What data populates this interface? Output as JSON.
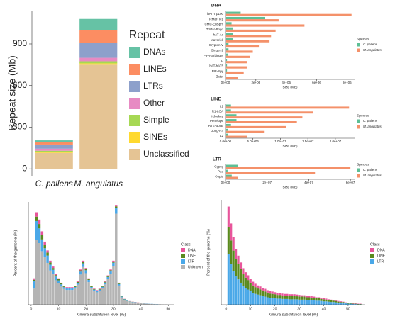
{
  "chart_data": [
    {
      "type": "stacked_bar",
      "ylabel": "Repeat size (Mb)",
      "legend_title": "Repeat",
      "categories": [
        "C. pallens",
        "M. angulatus"
      ],
      "series": [
        {
          "name": "DNAs",
          "color": "#66c2a5",
          "values": [
            15,
            80
          ]
        },
        {
          "name": "LINEs",
          "color": "#fc8d62",
          "values": [
            15,
            90
          ]
        },
        {
          "name": "LTRs",
          "color": "#8da0cb",
          "values": [
            30,
            110
          ]
        },
        {
          "name": "Other",
          "color": "#e78ac3",
          "values": [
            15,
            25
          ]
        },
        {
          "name": "Simple",
          "color": "#a6d854",
          "values": [
            10,
            15
          ]
        },
        {
          "name": "SINEs",
          "color": "#ffd92f",
          "values": [
            5,
            10
          ]
        },
        {
          "name": "Unclassified",
          "color": "#e5c494",
          "values": [
            115,
            750
          ]
        }
      ],
      "ylim": [
        -50,
        1140
      ],
      "yticks": [
        0,
        300,
        600,
        900
      ]
    },
    {
      "type": "grouped_barh",
      "title": "DNA",
      "xlabel": "Size (Mb)",
      "legend_title": "Species",
      "categories": [
        "hAT-Tip100",
        "TcMar-Tc1",
        "CMC-EnSpm",
        "TcMar-Pogo",
        "hAT-Ac",
        "Maverick",
        "Crypton-V",
        "Ginger-2",
        "PIF-Harbinger",
        "P",
        "hAT-hAT5",
        "PIF-Spy",
        "Zator"
      ],
      "series": [
        {
          "name": "C. pallens",
          "color": "#5dbf95",
          "values": [
            1000000,
            2600000,
            400000,
            500000,
            500000,
            500000,
            200000,
            200000,
            150000,
            100000,
            100000,
            100000,
            50000
          ]
        },
        {
          "name": "M. angulatus",
          "color": "#f4916a",
          "values": [
            8300000,
            3500000,
            5200000,
            3300000,
            3000000,
            2900000,
            2200000,
            1800000,
            1600000,
            1400000,
            1400000,
            1200000,
            800000
          ]
        }
      ],
      "xlim": [
        0,
        8500000
      ],
      "xticks": [
        {
          "value": 0,
          "label": "0e+00"
        },
        {
          "value": 2000000,
          "label": "2e+06"
        },
        {
          "value": 4000000,
          "label": "4e+06"
        },
        {
          "value": 6000000,
          "label": "6e+06"
        },
        {
          "value": 8000000,
          "label": "8e+06"
        }
      ]
    },
    {
      "type": "grouped_barh",
      "title": "LINE",
      "xlabel": "Size (Mb)",
      "legend_title": "Species",
      "categories": [
        "L1",
        "R1-LOA",
        "I-Jockey",
        "Penelope",
        "RTE-BovB",
        "Dong-R4",
        "L2"
      ],
      "series": [
        {
          "name": "C. pallens",
          "color": "#5dbf95",
          "values": [
            1000000,
            1000000,
            2000000,
            2000000,
            1000000,
            500000,
            500000
          ]
        },
        {
          "name": "M. angulatus",
          "color": "#f4916a",
          "values": [
            22500000,
            16000000,
            14000000,
            13000000,
            11000000,
            7000000,
            4000000
          ]
        }
      ],
      "xlim": [
        0,
        23500000
      ],
      "xticks": [
        {
          "value": 0,
          "label": "0.0e+00"
        },
        {
          "value": 5000000,
          "label": "5.0e+06"
        },
        {
          "value": 10000000,
          "label": "1.0e+07"
        },
        {
          "value": 15000000,
          "label": "1.5e+07"
        },
        {
          "value": 20000000,
          "label": "2.0e+07"
        }
      ]
    },
    {
      "type": "grouped_barh",
      "title": "LTR",
      "xlabel": "Size (Mb)",
      "legend_title": "Species",
      "categories": [
        "Gypsy",
        "Pao",
        "Copia"
      ],
      "series": [
        {
          "name": "C. pallens",
          "color": "#5dbf95",
          "values": [
            6000000,
            1000000,
            3000000
          ]
        },
        {
          "name": "M. angulatus",
          "color": "#f4916a",
          "values": [
            60000000,
            43000000,
            6000000
          ]
        }
      ],
      "xlim": [
        0,
        62000000
      ],
      "xticks": [
        {
          "value": 0,
          "label": "0e+00"
        },
        {
          "value": 20000000,
          "label": "2e+07"
        },
        {
          "value": 40000000,
          "label": "4e+07"
        },
        {
          "value": 60000000,
          "label": "6e+07"
        }
      ]
    },
    {
      "type": "stacked_bar",
      "xlabel": "Kimura substitution level (%)",
      "ylabel": "Percent of the genome (%)",
      "legend_title": "Class",
      "x": [
        1,
        2,
        3,
        4,
        5,
        6,
        7,
        8,
        9,
        10,
        11,
        12,
        13,
        14,
        15,
        16,
        17,
        18,
        19,
        20,
        21,
        22,
        23,
        24,
        25,
        26,
        27,
        28,
        29,
        30,
        31,
        32,
        33,
        34,
        35,
        36,
        37,
        38,
        39,
        40,
        41,
        42,
        43,
        44,
        45,
        46,
        47,
        48,
        49,
        50
      ],
      "series": [
        {
          "name": "DNA",
          "color": "#e8559b",
          "values": [
            0.1,
            0.3,
            0.3,
            0.25,
            0.2,
            0.15,
            0.12,
            0.1,
            0.08,
            0.06,
            0.05,
            0.05,
            0.04,
            0.04,
            0.04,
            0.04,
            0.05,
            0.06,
            0.08,
            0.07,
            0.05,
            0.04,
            0.03,
            0.03,
            0.03,
            0.03,
            0.04,
            0.05,
            0.05,
            0.06,
            0.1,
            0.04,
            0.02,
            0.01,
            0.01,
            0.01,
            0.01,
            0.01,
            0.01,
            0,
            0,
            0,
            0,
            0,
            0,
            0,
            0,
            0,
            0,
            0
          ]
        },
        {
          "name": "LINE",
          "color": "#5a8a1e",
          "values": [
            0.1,
            0.3,
            0.3,
            0.3,
            0.25,
            0.2,
            0.15,
            0.12,
            0.1,
            0.08,
            0.06,
            0.05,
            0.05,
            0.05,
            0.05,
            0.05,
            0.06,
            0.08,
            0.1,
            0.08,
            0.06,
            0.05,
            0.04,
            0.04,
            0.04,
            0.05,
            0.05,
            0.06,
            0.07,
            0.08,
            0.1,
            0.05,
            0.02,
            0.02,
            0.01,
            0.01,
            0.01,
            0.01,
            0.01,
            0.01,
            0,
            0,
            0,
            0,
            0,
            0,
            0,
            0,
            0,
            0
          ]
        },
        {
          "name": "LTR",
          "color": "#4aa8e8",
          "values": [
            0.5,
            1.3,
            1.0,
            0.8,
            0.6,
            0.5,
            0.4,
            0.3,
            0.25,
            0.2,
            0.15,
            0.12,
            0.1,
            0.1,
            0.1,
            0.1,
            0.12,
            0.2,
            0.25,
            0.2,
            0.15,
            0.1,
            0.08,
            0.08,
            0.08,
            0.1,
            0.12,
            0.15,
            0.2,
            0.25,
            0.4,
            0.1,
            0.05,
            0.04,
            0.03,
            0.02,
            0.02,
            0.02,
            0.02,
            0.01,
            0.01,
            0.01,
            0.01,
            0.01,
            0.01,
            0.01,
            0,
            0,
            0,
            0
          ]
        },
        {
          "name": "Unknown",
          "color": "#b4b4b4",
          "values": [
            1.1,
            4.4,
            4.2,
            3.65,
            3.25,
            2.85,
            2.33,
            2.08,
            1.67,
            1.46,
            1.24,
            1.08,
            1.01,
            1.01,
            1.01,
            1.11,
            1.37,
            2.06,
            2.57,
            2.15,
            1.54,
            1.11,
            0.95,
            0.85,
            0.95,
            1.12,
            1.39,
            1.74,
            2.08,
            2.61,
            6.2,
            1.31,
            0.51,
            0.33,
            0.25,
            0.21,
            0.17,
            0.15,
            0.12,
            0.1,
            0.09,
            0.07,
            0.06,
            0.05,
            0.04,
            0.03,
            0.03,
            0.02,
            0.02,
            0.01
          ]
        }
      ],
      "xlim": [
        -1,
        52
      ],
      "ylim": [
        0,
        7
      ],
      "xticks": [
        0,
        10,
        20,
        30,
        40,
        50
      ]
    },
    {
      "type": "stacked_bar",
      "xlabel": "Kimura substitution level (%)",
      "ylabel": "Percent of the genome (%)",
      "legend_title": "Class",
      "x": [
        1,
        2,
        3,
        4,
        5,
        6,
        7,
        8,
        9,
        10,
        11,
        12,
        13,
        14,
        15,
        16,
        17,
        18,
        19,
        20,
        21,
        22,
        23,
        24,
        25,
        26,
        27,
        28,
        29,
        30,
        31,
        32,
        33,
        34,
        35,
        36,
        37,
        38,
        39,
        40,
        41,
        42,
        43,
        44,
        45,
        46,
        47,
        48,
        49,
        50,
        51,
        52,
        53,
        54,
        55
      ],
      "series": [
        {
          "name": "DNA",
          "color": "#e8559b",
          "values": [
            0.6,
            0.5,
            0.4,
            0.3,
            0.25,
            0.2,
            0.18,
            0.16,
            0.14,
            0.12,
            0.11,
            0.1,
            0.09,
            0.09,
            0.08,
            0.08,
            0.07,
            0.07,
            0.07,
            0.06,
            0.06,
            0.06,
            0.06,
            0.05,
            0.05,
            0.05,
            0.05,
            0.05,
            0.05,
            0.05,
            0.04,
            0.04,
            0.04,
            0.04,
            0.04,
            0.04,
            0.03,
            0.03,
            0.03,
            0.03,
            0.03,
            0.02,
            0.02,
            0.02,
            0.02,
            0.02,
            0.02,
            0.01,
            0.01,
            0.01,
            0.01,
            0.01,
            0.01,
            0.01,
            0.01
          ]
        },
        {
          "name": "LINE",
          "color": "#5a8a1e",
          "values": [
            0.8,
            0.7,
            0.6,
            0.5,
            0.45,
            0.4,
            0.35,
            0.3,
            0.28,
            0.25,
            0.22,
            0.2,
            0.18,
            0.17,
            0.16,
            0.15,
            0.14,
            0.13,
            0.12,
            0.12,
            0.11,
            0.11,
            0.1,
            0.1,
            0.1,
            0.1,
            0.1,
            0.1,
            0.09,
            0.09,
            0.09,
            0.09,
            0.08,
            0.08,
            0.08,
            0.07,
            0.07,
            0.07,
            0.06,
            0.06,
            0.05,
            0.05,
            0.05,
            0.04,
            0.04,
            0.03,
            0.03,
            0.03,
            0.02,
            0.02,
            0.02,
            0.01,
            0.01,
            0.01,
            0.01
          ]
        },
        {
          "name": "LTR",
          "color": "#4aa8e8",
          "values": [
            1.5,
            1.2,
            1.0,
            0.85,
            0.75,
            0.65,
            0.55,
            0.5,
            0.45,
            0.4,
            0.35,
            0.32,
            0.3,
            0.28,
            0.26,
            0.24,
            0.22,
            0.2,
            0.2,
            0.19,
            0.18,
            0.18,
            0.17,
            0.17,
            0.17,
            0.16,
            0.16,
            0.16,
            0.16,
            0.15,
            0.15,
            0.15,
            0.14,
            0.14,
            0.13,
            0.13,
            0.12,
            0.12,
            0.11,
            0.1,
            0.1,
            0.09,
            0.08,
            0.08,
            0.07,
            0.06,
            0.05,
            0.05,
            0.04,
            0.03,
            0.03,
            0.02,
            0.02,
            0.01,
            0.01
          ]
        }
      ],
      "xlim": [
        -2,
        57
      ],
      "ylim": [
        0,
        3.1
      ],
      "xticks": [
        0,
        10,
        20,
        30,
        40,
        50
      ]
    }
  ]
}
